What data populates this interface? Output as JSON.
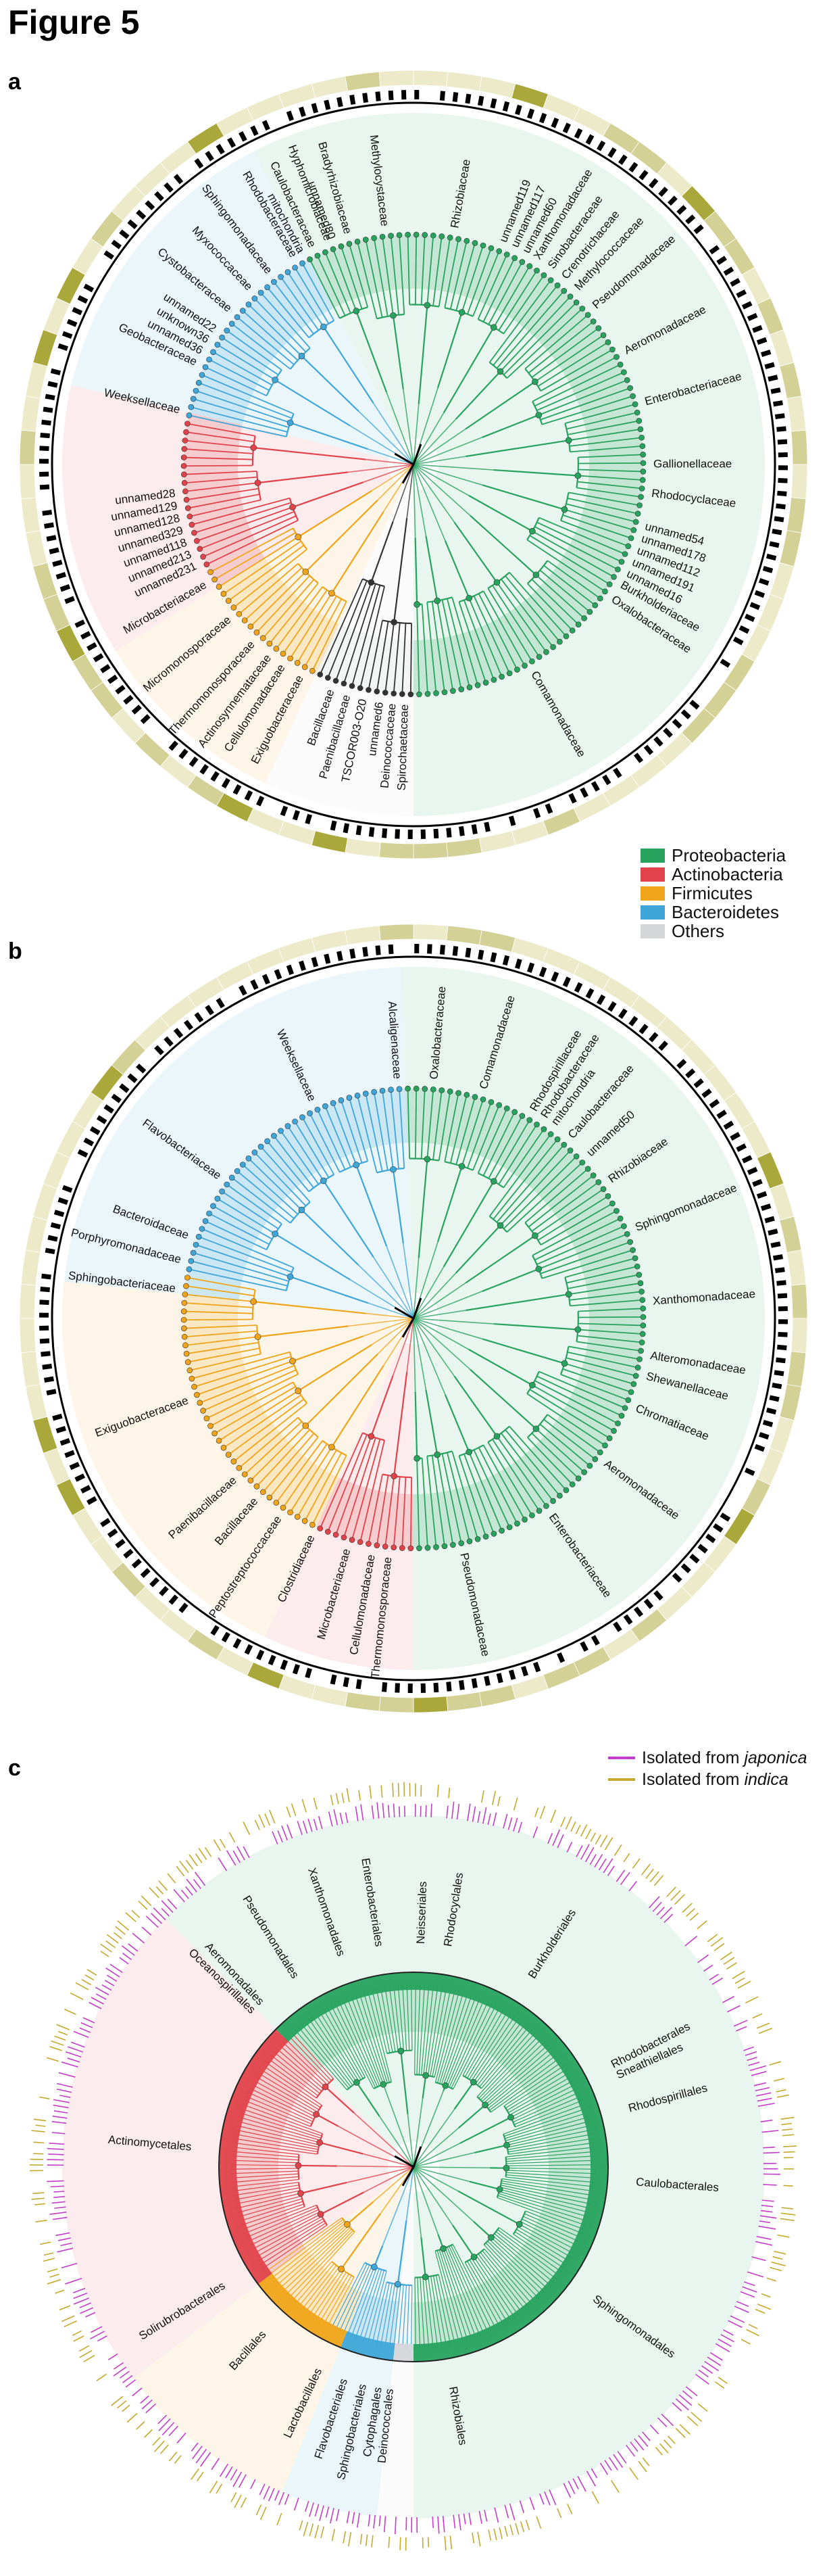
{
  "figure_title": "Figure 5",
  "colors": {
    "Proteobacteria": "#27a35e",
    "Actinobacteria": "#e0434a",
    "Firmicutes": "#f0a419",
    "Bacteroidetes": "#3ea6d8",
    "Others": "#d5d6da",
    "ring_light": "#eceac9",
    "ring_mid": "#d4d196",
    "ring_dark": "#aaa83a",
    "japonica": "#c43ec9",
    "indica": "#c3aa2c"
  },
  "legend_phyla": [
    {
      "name": "Proteobacteria",
      "color": "#27a35e"
    },
    {
      "name": "Actinobacteria",
      "color": "#e0434a"
    },
    {
      "name": "Firmicutes",
      "color": "#f0a419"
    },
    {
      "name": "Bacteroidetes",
      "color": "#3ea6d8"
    },
    {
      "name": "Others",
      "color": "#d5d6da"
    }
  ],
  "legend_isolated": {
    "japonica": {
      "prefix": "Isolated from ",
      "term": "japonica"
    },
    "indica": {
      "prefix": "Isolated from ",
      "term": "indica"
    }
  },
  "panels": [
    {
      "letter": "a",
      "sectors": [
        {
          "phylum": "Proteobacteria",
          "from": 333,
          "to": 540
        },
        {
          "phylum": "Bacteroidetes",
          "from": 283,
          "to": 333
        },
        {
          "phylum": "Actinobacteria",
          "from": 238,
          "to": 283
        },
        {
          "phylum": "Firmicutes",
          "from": 205,
          "to": 238
        },
        {
          "phylum": "Others",
          "from": 180,
          "to": 205
        }
      ],
      "labels": [
        {
          "text": "Methylocystaceae",
          "angle": 353
        },
        {
          "text": "Bradyrhizobiaceae",
          "angle": 344
        },
        {
          "text": "Hyphomicrobiaceae",
          "angle": 339
        },
        {
          "text": "Caulobacteraceae",
          "angle": 335
        },
        {
          "text": "unnamed80",
          "angle": 340
        },
        {
          "text": "Rhodobacteraceae",
          "angle": 330
        },
        {
          "text": "Sphingomonadaceae",
          "angle": 323
        },
        {
          "text": "mitochondria",
          "angle": 332
        },
        {
          "text": "Myxococcaceae",
          "angle": 317
        },
        {
          "text": "Cystobacteraceae",
          "angle": 310
        },
        {
          "text": "unnamed22",
          "angle": 304
        },
        {
          "text": "unknown36",
          "angle": 301
        },
        {
          "text": "unnamed36",
          "angle": 298
        },
        {
          "text": "Geobacteraceae",
          "angle": 295
        },
        {
          "text": "Weeksellaceae",
          "angle": 283
        },
        {
          "text": "unnamed28",
          "angle": 263
        },
        {
          "text": "unnamed129",
          "angle": 260
        },
        {
          "text": "unnamed128",
          "angle": 257
        },
        {
          "text": "unnamed329",
          "angle": 254
        },
        {
          "text": "unnamed118",
          "angle": 251
        },
        {
          "text": "unnamed213",
          "angle": 248
        },
        {
          "text": "unnamed231",
          "angle": 245
        },
        {
          "text": "Microbacteriaceae",
          "angle": 240
        },
        {
          "text": "Micromonosporaceae",
          "angle": 230
        },
        {
          "text": "Thermomonosporaceae",
          "angle": 222
        },
        {
          "text": "Actinosynnemataceae",
          "angle": 217
        },
        {
          "text": "Cellulomonadaceae",
          "angle": 213
        },
        {
          "text": "Exiguobacteraceae",
          "angle": 208
        },
        {
          "text": "Bacillaceae",
          "angle": 200
        },
        {
          "text": "Paenibacillaceae",
          "angle": 196
        },
        {
          "text": "TSCOR003-O20",
          "angle": 192
        },
        {
          "text": "unnamed6",
          "angle": 188
        },
        {
          "text": "Deinococcaceae",
          "angle": 185
        },
        {
          "text": "Spirochaetaceae",
          "angle": 182
        },
        {
          "text": "Rhizobiaceae",
          "angle": 10
        },
        {
          "text": "unnamed119",
          "angle": 22
        },
        {
          "text": "unnamed117",
          "angle": 25
        },
        {
          "text": "unnamed60",
          "angle": 28
        },
        {
          "text": "Xanthomonadaceae",
          "angle": 31
        },
        {
          "text": "Sinobacteraceae",
          "angle": 35
        },
        {
          "text": "Crenotrichaceae",
          "angle": 39
        },
        {
          "text": "Methylococcaceae",
          "angle": 43
        },
        {
          "text": "Pseudomonadaceae",
          "angle": 49
        },
        {
          "text": "Aeromonadaceae",
          "angle": 62
        },
        {
          "text": "Enterobacteriaceae",
          "angle": 75
        },
        {
          "text": "Gallionellaceae",
          "angle": 90
        },
        {
          "text": "Rhodocyclaceae",
          "angle": 97
        },
        {
          "text": "unnamed54",
          "angle": 105
        },
        {
          "text": "unnamed178",
          "angle": 108
        },
        {
          "text": "unnamed112",
          "angle": 111
        },
        {
          "text": "unnamed191",
          "angle": 114
        },
        {
          "text": "unnamed16",
          "angle": 117
        },
        {
          "text": "Burkholderiaceae",
          "angle": 120
        },
        {
          "text": "Oxalobacteraceae",
          "angle": 124
        },
        {
          "text": "Comamonadaceae",
          "angle": 150
        }
      ]
    },
    {
      "letter": "b",
      "sectors": [
        {
          "phylum": "Proteobacteria",
          "from": 358,
          "to": 540
        },
        {
          "phylum": "Bacteroidetes",
          "from": 276,
          "to": 358
        },
        {
          "phylum": "Firmicutes",
          "from": 205,
          "to": 276
        },
        {
          "phylum": "Actinobacteria",
          "from": 180,
          "to": 205
        }
      ],
      "labels": [
        {
          "text": "Alcaligenaceae",
          "angle": 356
        },
        {
          "text": "Weeksellaceae",
          "angle": 335
        },
        {
          "text": "Flavobacteriaceae",
          "angle": 306
        },
        {
          "text": "Bacteroidaceae",
          "angle": 290
        },
        {
          "text": "Porphyromonadaceae",
          "angle": 284
        },
        {
          "text": "Sphingobacteriaceae",
          "angle": 277
        },
        {
          "text": "Exiguobacteraceae",
          "angle": 250
        },
        {
          "text": "Paenibacillaceae",
          "angle": 228
        },
        {
          "text": "Bacillaceae",
          "angle": 221
        },
        {
          "text": "Peptostreptococcaceae",
          "angle": 214
        },
        {
          "text": "Clostridiaceae",
          "angle": 205
        },
        {
          "text": "Microbacteriaceae",
          "angle": 196
        },
        {
          "text": "Cellulomonadaceae",
          "angle": 190
        },
        {
          "text": "Thermomonosporaceae",
          "angle": 186
        },
        {
          "text": "Oxalobacteraceae",
          "angle": 5
        },
        {
          "text": "Comamonadaceae",
          "angle": 17
        },
        {
          "text": "Rhodospirillaceae",
          "angle": 30
        },
        {
          "text": "Rhodobacteraceae",
          "angle": 33
        },
        {
          "text": "mitochondria",
          "angle": 36
        },
        {
          "text": "Caulobacteraceae",
          "angle": 41
        },
        {
          "text": "unnamed50",
          "angle": 47
        },
        {
          "text": "Rhizobiaceae",
          "angle": 55
        },
        {
          "text": "Sphingomonadaceae",
          "angle": 68
        },
        {
          "text": "Xanthomonadaceae",
          "angle": 86
        },
        {
          "text": "Alteromonadaceae",
          "angle": 99
        },
        {
          "text": "Shewanellaceae",
          "angle": 104
        },
        {
          "text": "Chromatiaceae",
          "angle": 112
        },
        {
          "text": "Aeromonadaceae",
          "angle": 127
        },
        {
          "text": "Enterobacteriaceae",
          "angle": 145
        },
        {
          "text": "Pseudomonadaceae",
          "angle": 168
        }
      ]
    },
    {
      "letter": "c",
      "sectors": [
        {
          "phylum": "Proteobacteria",
          "from": 315,
          "to": 540
        },
        {
          "phylum": "Actinobacteria",
          "from": 233,
          "to": 315
        },
        {
          "phylum": "Firmicutes",
          "from": 202,
          "to": 233
        },
        {
          "phylum": "Bacteroidetes",
          "from": 186,
          "to": 202
        },
        {
          "phylum": "Others",
          "from": 180,
          "to": 186
        }
      ],
      "labels": [
        {
          "text": "Xanthomonadales",
          "angle": 341
        },
        {
          "text": "Enterobacteriales",
          "angle": 351
        },
        {
          "text": "Neisseriales",
          "angle": 2
        },
        {
          "text": "Rhodocyclales",
          "angle": 9
        },
        {
          "text": "Burkholderiales",
          "angle": 32
        },
        {
          "text": "Pseudomonadales",
          "angle": 328
        },
        {
          "text": "Aeromonadales",
          "angle": 317
        },
        {
          "text": "Oceanospirillales",
          "angle": 314
        },
        {
          "text": "Actinomycetales",
          "angle": 275
        },
        {
          "text": "Solirubrobacterales",
          "angle": 238
        },
        {
          "text": "Bacillales",
          "angle": 222
        },
        {
          "text": "Lactobacillales",
          "angle": 205
        },
        {
          "text": "Flavobacteriales",
          "angle": 198
        },
        {
          "text": "Sphingobacteriales",
          "angle": 193
        },
        {
          "text": "Cytophagales",
          "angle": 189
        },
        {
          "text": "Deinococcales",
          "angle": 186
        },
        {
          "text": "Rhodobacterales",
          "angle": 63
        },
        {
          "text": "Sneathiellales",
          "angle": 66
        },
        {
          "text": "Rhodospirillales",
          "angle": 75
        },
        {
          "text": "Caulobacterales",
          "angle": 94
        },
        {
          "text": "Sphingomonadales",
          "angle": 126
        },
        {
          "text": "Rhizobiales",
          "angle": 170
        }
      ]
    }
  ]
}
